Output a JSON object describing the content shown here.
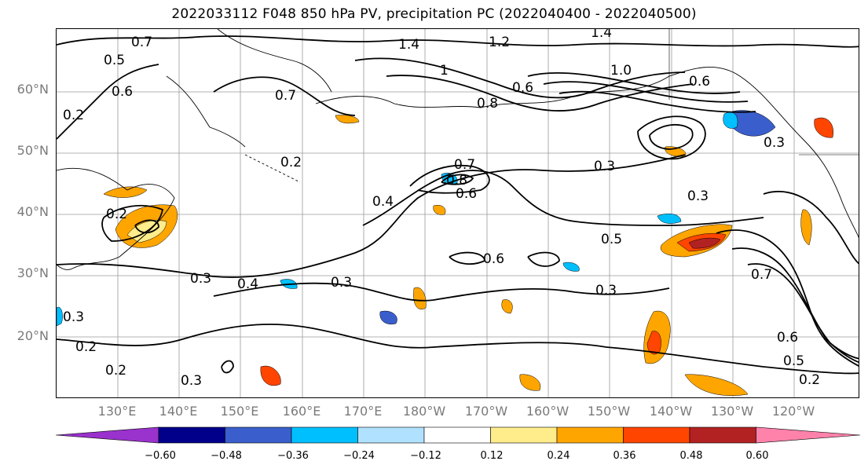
{
  "title": "2022033112 F048 850 hPa PV, precipitation PC (2022040400 - 2022040500)",
  "lat_labels": [
    "60°N",
    "50°N",
    "40°N",
    "30°N",
    "20°N"
  ],
  "lon_labels": [
    "130°E",
    "140°E",
    "150°E",
    "160°E",
    "170°E",
    "180°W",
    "170°W",
    "160°W",
    "150°W",
    "140°W",
    "130°W",
    "120°W"
  ],
  "colorbar": {
    "ticks": [
      "−0.60",
      "−0.48",
      "−0.36",
      "−0.24",
      "−0.12",
      "0.12",
      "0.24",
      "0.36",
      "0.48",
      "0.60"
    ],
    "colors": [
      "#9a32cd",
      "#00008b",
      "#3a5fcd",
      "#00bfff",
      "#b0e2ff",
      "#ffffff",
      "#ffec8b",
      "#ffa500",
      "#ff4500",
      "#b22222",
      "#ff82ab"
    ]
  },
  "contour_labels": [
    "0.7",
    "1.4",
    "1.2",
    "1.4",
    "0.5",
    "0.6",
    "0.2",
    "1",
    "0.7",
    "0.8",
    "0.6",
    "1.0",
    "0.6",
    "0.2",
    "0.7",
    "0.8",
    "0.6",
    "0.3",
    "0.3",
    "0.3",
    "0.4",
    "0.5",
    "0.6",
    "0.3",
    "0.2",
    "0.3",
    "0.4",
    "0.3",
    "0.2",
    "0.2",
    "0.3",
    "0.7",
    "0.6",
    "0.5",
    "0.2",
    "0.3"
  ],
  "map": {
    "field_fill": "#ffffff",
    "contour_color": "#000000",
    "coast_color": "#000000",
    "grid_color": "#9a9a9a"
  }
}
